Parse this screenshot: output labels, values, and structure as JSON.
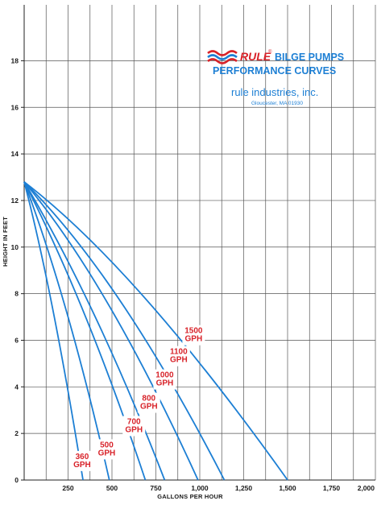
{
  "brand": {
    "name": "RULE",
    "registered_mark": "®",
    "title_line1": "BILGE PUMPS",
    "title_line2": "PERFORMANCE CURVES",
    "company": "rule industries, inc.",
    "address": "Gloucester, MA 01930",
    "logo_colors": [
      "#d8232a",
      "#1d7fd4"
    ]
  },
  "colors": {
    "curve": "#1d7fd4",
    "label": "#d8232a",
    "grid": "#555555"
  },
  "chart_data": {
    "type": "line",
    "xlabel": "GALLONS PER HOUR",
    "ylabel": "HEIGHT IN FEET",
    "xlim": [
      0,
      2000
    ],
    "ylim": [
      0,
      20
    ],
    "x_ticks": [
      250,
      500,
      750,
      1000,
      1250,
      1500,
      1750,
      2000
    ],
    "x_tick_labels": [
      "250",
      "500",
      "750",
      "1,000",
      "1,250",
      "1,500",
      "1,750",
      "2,000"
    ],
    "x_grid_step": 125,
    "y_ticks": [
      0,
      2,
      4,
      6,
      8,
      10,
      12,
      14,
      16,
      18
    ],
    "y_tick_labels": [
      "0",
      "2",
      "4",
      "6",
      "8",
      "10",
      "12",
      "14",
      "16",
      "18"
    ],
    "grid": true,
    "shutoff_head_ft": 12.8,
    "series": [
      {
        "name": "360 GPH",
        "label_lines": [
          "360",
          "GPH"
        ],
        "max_flow": 335,
        "control_flow": 160,
        "control_head": 8.2
      },
      {
        "name": "500 GPH",
        "label_lines": [
          "500",
          "GPH"
        ],
        "max_flow": 485,
        "control_flow": 250,
        "control_head": 7.8
      },
      {
        "name": "700 GPH",
        "label_lines": [
          "700",
          "GPH"
        ],
        "max_flow": 690,
        "control_flow": 355,
        "control_head": 7.6
      },
      {
        "name": "800 GPH",
        "label_lines": [
          "800",
          "GPH"
        ],
        "max_flow": 800,
        "control_flow": 410,
        "control_head": 7.6
      },
      {
        "name": "1000 GPH",
        "label_lines": [
          "1000",
          "GPH"
        ],
        "max_flow": 990,
        "control_flow": 470,
        "control_head": 8.6
      },
      {
        "name": "1100 GPH",
        "label_lines": [
          "1100",
          "GPH"
        ],
        "max_flow": 1140,
        "control_flow": 540,
        "control_head": 8.8
      },
      {
        "name": "1500 GPH",
        "label_lines": [
          "1500",
          "GPH"
        ],
        "max_flow": 1500,
        "control_flow": 640,
        "control_head": 9.1
      }
    ],
    "label_positions": [
      {
        "flow": 330,
        "head": 0.8
      },
      {
        "flow": 470,
        "head": 1.3
      },
      {
        "flow": 625,
        "head": 2.3
      },
      {
        "flow": 710,
        "head": 3.3
      },
      {
        "flow": 800,
        "head": 4.3
      },
      {
        "flow": 880,
        "head": 5.3
      },
      {
        "flow": 965,
        "head": 6.2
      }
    ]
  }
}
